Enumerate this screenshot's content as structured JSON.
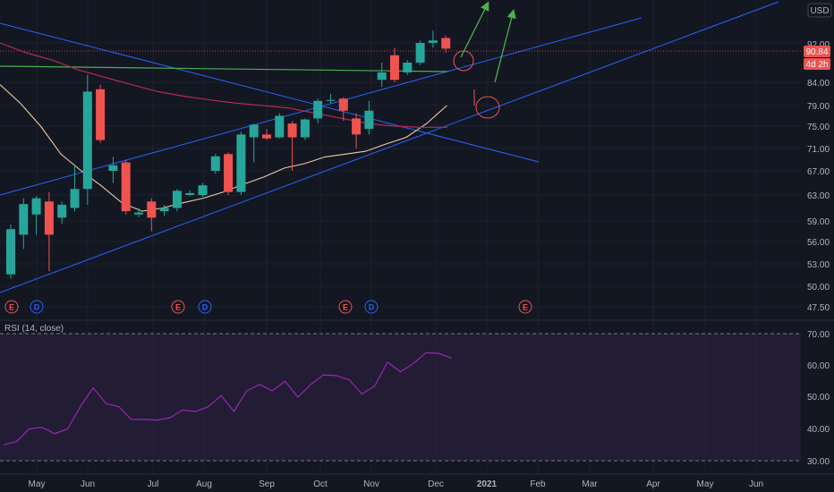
{
  "currency": {
    "label": "USD"
  },
  "price_tags": {
    "last": "90.84",
    "countdown": "4d 2h",
    "partial_top": "92.00"
  },
  "rsi": {
    "label": "RSI (14, close)"
  },
  "colors": {
    "bg": "#131722",
    "up": "#26a69a",
    "down": "#ef5350",
    "trend": "#2962ff",
    "ma_short": "#f2c9a4",
    "ma_long": "#b02a5a",
    "hline": "#4caf50",
    "rsi": "#9c27b0",
    "draw_green": "#4caf50",
    "draw_red": "#ef5350"
  },
  "chart_data": [
    {
      "type": "candlestick",
      "title": "",
      "timeframe": "weekly",
      "ylim": [
        45,
        100
      ],
      "price_ticks": [
        "50.00",
        "53.00",
        "56.00",
        "59.00",
        "63.00",
        "67.00",
        "71.00",
        "75.00",
        "79.00",
        "84.00",
        "47.50"
      ],
      "x_labels": [
        "May",
        "Jun",
        "Jul",
        "Aug",
        "Sep",
        "Oct",
        "Nov",
        "Dec",
        "2021",
        "Feb",
        "Mar",
        "Apr",
        "May",
        "Jun"
      ],
      "candles": [
        {
          "o": 51.6,
          "h": 58.5,
          "l": 51.0,
          "c": 57.8
        },
        {
          "o": 57.0,
          "h": 62.5,
          "l": 55.0,
          "c": 61.6
        },
        {
          "o": 60.0,
          "h": 62.8,
          "l": 57.0,
          "c": 62.5
        },
        {
          "o": 62.0,
          "h": 63.5,
          "l": 52.0,
          "c": 57.0
        },
        {
          "o": 59.5,
          "h": 62.0,
          "l": 58.6,
          "c": 61.5
        },
        {
          "o": 61.0,
          "h": 68.0,
          "l": 60.5,
          "c": 64.0
        },
        {
          "o": 64.0,
          "h": 85.5,
          "l": 61.5,
          "c": 82.0
        },
        {
          "o": 82.5,
          "h": 83.5,
          "l": 72.0,
          "c": 72.5
        },
        {
          "o": 67.0,
          "h": 69.5,
          "l": 65.0,
          "c": 68.0
        },
        {
          "o": 68.5,
          "h": 69.0,
          "l": 60.0,
          "c": 60.5
        },
        {
          "o": 60.0,
          "h": 61.0,
          "l": 59.6,
          "c": 60.3
        },
        {
          "o": 62.0,
          "h": 62.5,
          "l": 57.5,
          "c": 59.5
        },
        {
          "o": 60.5,
          "h": 61.5,
          "l": 59.8,
          "c": 61.0
        },
        {
          "o": 61.0,
          "h": 64.0,
          "l": 60.5,
          "c": 63.7
        },
        {
          "o": 63.0,
          "h": 63.8,
          "l": 62.8,
          "c": 63.3
        },
        {
          "o": 63.0,
          "h": 65.0,
          "l": 62.7,
          "c": 64.6
        },
        {
          "o": 67.0,
          "h": 70.0,
          "l": 66.5,
          "c": 69.6
        },
        {
          "o": 70.0,
          "h": 70.3,
          "l": 63.0,
          "c": 63.5
        },
        {
          "o": 63.5,
          "h": 74.0,
          "l": 63.0,
          "c": 73.5
        },
        {
          "o": 73.0,
          "h": 75.5,
          "l": 68.5,
          "c": 75.3
        },
        {
          "o": 73.5,
          "h": 74.5,
          "l": 72.5,
          "c": 72.8
        },
        {
          "o": 73.0,
          "h": 77.5,
          "l": 72.8,
          "c": 77.0
        },
        {
          "o": 75.5,
          "h": 76.0,
          "l": 67.0,
          "c": 73.0
        },
        {
          "o": 73.0,
          "h": 76.5,
          "l": 72.5,
          "c": 76.3
        },
        {
          "o": 76.5,
          "h": 80.5,
          "l": 75.5,
          "c": 80.0
        },
        {
          "o": 80.0,
          "h": 81.5,
          "l": 79.5,
          "c": 80.2
        },
        {
          "o": 80.5,
          "h": 80.8,
          "l": 76.0,
          "c": 78.0
        },
        {
          "o": 76.5,
          "h": 77.5,
          "l": 71.0,
          "c": 73.5
        },
        {
          "o": 74.5,
          "h": 80.0,
          "l": 73.5,
          "c": 78.0
        },
        {
          "o": 84.5,
          "h": 88.0,
          "l": 83.0,
          "c": 86.0
        },
        {
          "o": 89.5,
          "h": 91.0,
          "l": 84.0,
          "c": 84.5
        },
        {
          "o": 86.0,
          "h": 88.5,
          "l": 85.5,
          "c": 88.0
        },
        {
          "o": 88.0,
          "h": 92.5,
          "l": 87.5,
          "c": 92.0
        },
        {
          "o": 92.0,
          "h": 94.5,
          "l": 91.0,
          "c": 92.5
        },
        {
          "o": 93.0,
          "h": 93.5,
          "l": 90.0,
          "c": 90.84
        }
      ],
      "ma_short_points": [
        83.5,
        79.5,
        75.0,
        70.0,
        67.0,
        64.5,
        61.8,
        60.5,
        61.0,
        61.8,
        62.5,
        63.5,
        64.8,
        66.0,
        67.5,
        68.3,
        69.5,
        70.0,
        70.5,
        71.8,
        73.0,
        75.5,
        79.0
      ],
      "ma_long_points": [
        92.0,
        90.0,
        88.5,
        86.5,
        85.0,
        83.5,
        82.0,
        81.0,
        80.2,
        79.5,
        79.0,
        78.5,
        77.5,
        76.5,
        75.5,
        75.0,
        74.8,
        74.8
      ],
      "events": [
        {
          "kind": "E",
          "label": "E",
          "color": "#ef5350"
        },
        {
          "kind": "D",
          "label": "D",
          "color": "#2962ff"
        },
        {
          "kind": "E",
          "label": "E",
          "color": "#ef5350"
        },
        {
          "kind": "D",
          "label": "D",
          "color": "#2962ff"
        },
        {
          "kind": "E",
          "label": "E",
          "color": "#ef5350"
        },
        {
          "kind": "D",
          "label": "D",
          "color": "#2962ff"
        },
        {
          "kind": "E",
          "label": "E",
          "color": "#ef5350"
        }
      ]
    },
    {
      "type": "line",
      "name": "RSI (14, close)",
      "ylim": [
        25,
        75
      ],
      "ticks": [
        "70.00",
        "60.00",
        "50.00",
        "40.00",
        "30.00"
      ],
      "bands": [
        70,
        30
      ],
      "values": [
        35,
        36,
        40,
        40.5,
        38.5,
        40,
        47,
        53,
        48,
        47,
        43,
        43,
        42.8,
        43.5,
        46,
        45.5,
        47,
        50.5,
        45.5,
        52,
        54,
        52,
        55,
        50,
        54,
        57,
        56.8,
        55.5,
        51,
        53.5,
        61,
        58,
        60.5,
        64,
        63.8,
        62.3
      ]
    }
  ]
}
